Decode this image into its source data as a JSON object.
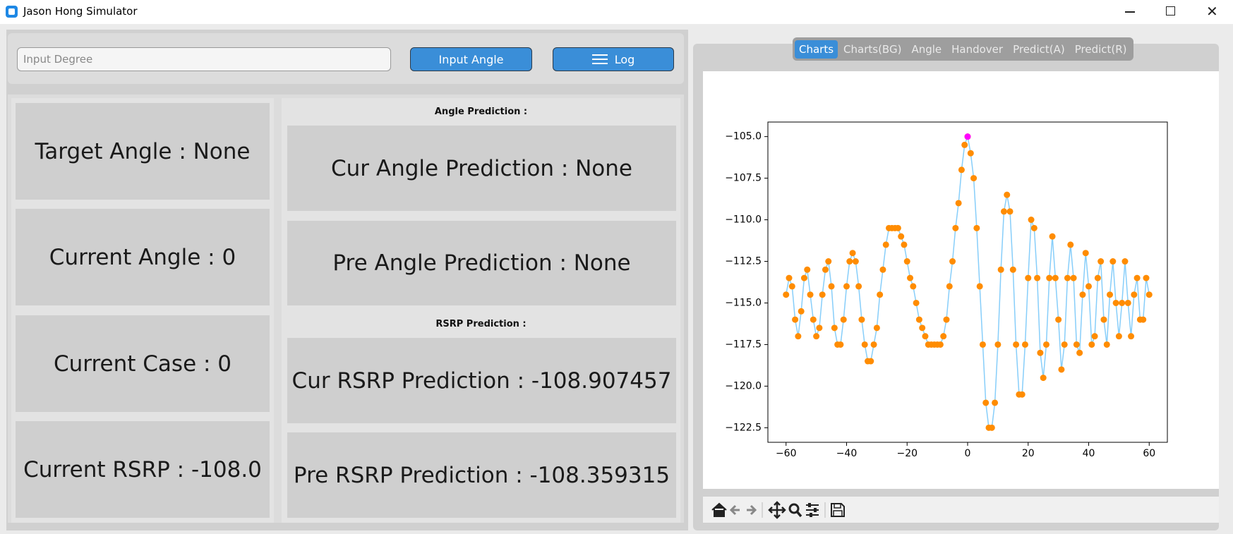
{
  "window": {
    "title": "Jason Hong Simulator"
  },
  "controls": {
    "input_placeholder": "Input Degree",
    "input_button": "Input Angle",
    "log_button": "Log"
  },
  "status": [
    "Target Angle : None",
    "Current Angle : 0",
    "Current Case : 0",
    "Current RSRP : -108.0"
  ],
  "angle_prediction": {
    "heading": "Angle Prediction :",
    "items": [
      "Cur Angle Prediction : None",
      "Pre Angle Prediction : None"
    ]
  },
  "rsrp_prediction": {
    "heading": "RSRP Prediction :",
    "items": [
      "Cur RSRP Prediction : -108.907457",
      "Pre RSRP Prediction : -108.359315"
    ]
  },
  "tabs": [
    "Charts",
    "Charts(BG)",
    "Angle",
    "Handover",
    "Predict(A)",
    "Predict(R)"
  ],
  "active_tab": 0,
  "chart_data": {
    "type": "line",
    "marker_color": "#ff8c00",
    "line_color": "#87cefa",
    "x": [
      -60,
      -59,
      -58,
      -57,
      -56,
      -55,
      -54,
      -53,
      -52,
      -51,
      -50,
      -49,
      -48,
      -47,
      -46,
      -45,
      -44,
      -43,
      -42,
      -41,
      -40,
      -39,
      -38,
      -37,
      -36,
      -35,
      -34,
      -33,
      -32,
      -31,
      -30,
      -29,
      -28,
      -27,
      -26,
      -25,
      -24,
      -23,
      -22,
      -21,
      -20,
      -19,
      -18,
      -17,
      -16,
      -15,
      -14,
      -13,
      -12,
      -11,
      -10,
      -9,
      -8,
      -7,
      -6,
      -5,
      -4,
      -3,
      -2,
      -1,
      0,
      1,
      2,
      3,
      4,
      5,
      6,
      7,
      8,
      9,
      10,
      11,
      12,
      13,
      14,
      15,
      16,
      17,
      18,
      19,
      20,
      21,
      22,
      23,
      24,
      25,
      26,
      27,
      28,
      29,
      30,
      31,
      32,
      33,
      34,
      35,
      36,
      37,
      38,
      39,
      40,
      41,
      42,
      43,
      44,
      45,
      46,
      47,
      48,
      49,
      50,
      51,
      52,
      53,
      54,
      55,
      56,
      57,
      58,
      59,
      60
    ],
    "values": [
      -114.5,
      -113.5,
      -114,
      -116,
      -117,
      -115.5,
      -113.5,
      -113,
      -114.5,
      -116,
      -117,
      -116.5,
      -114.5,
      -113,
      -112.5,
      -114,
      -116.5,
      -117.5,
      -117.5,
      -116,
      -114,
      -112.5,
      -112,
      -112.5,
      -114,
      -116,
      -117.5,
      -118.5,
      -118.5,
      -117.5,
      -116.5,
      -114.5,
      -113,
      -111.5,
      -110.5,
      -110.5,
      -110.5,
      -110.5,
      -111,
      -111.5,
      -112.5,
      -113.5,
      -114,
      -115,
      -116,
      -116.5,
      -117,
      -117.5,
      -117.5,
      -117.5,
      -117.5,
      -117.5,
      -117,
      -116,
      -114,
      -112.5,
      -110.5,
      -109,
      -107,
      -105.5,
      -105,
      -106,
      -107.5,
      -110.5,
      -114,
      -117.5,
      -121,
      -122.5,
      -122.5,
      -121,
      -117.5,
      -113,
      -109.5,
      -108.5,
      -109.5,
      -113,
      -117.5,
      -120.5,
      -120.5,
      -117.5,
      -113.5,
      -110,
      -110.5,
      -113.5,
      -118,
      -119.5,
      -117.5,
      -113.5,
      -111,
      -113.5,
      -116,
      -119,
      -117.5,
      -113.5,
      -111.5,
      -113.5,
      -117.5,
      -118,
      -114.5,
      -112,
      -114,
      -117.5,
      -117,
      -113.5,
      -112.5,
      -116,
      -117.5,
      -114.5,
      -112.5,
      -115,
      -117,
      -115,
      -112.5,
      -115,
      -117,
      -114.5,
      -113.5,
      -116,
      -116,
      -113.5,
      -114.5
    ],
    "highlight": {
      "x": 0,
      "y": -105,
      "color": "#ff00ff"
    },
    "xlim": [
      -66,
      66
    ],
    "ylim": [
      -123.375,
      -104.125
    ],
    "xticks": [
      {
        "value": -60,
        "label": "−60"
      },
      {
        "value": -40,
        "label": "−40"
      },
      {
        "value": -20,
        "label": "−20"
      },
      0,
      20,
      40,
      60
    ],
    "yticks": [
      {
        "value": -105,
        "label": "−105.0"
      },
      {
        "value": -107.5,
        "label": "−107.5"
      },
      {
        "value": -110,
        "label": "−110.0"
      },
      {
        "value": -112.5,
        "label": "−112.5"
      },
      {
        "value": -115,
        "label": "−115.0"
      },
      {
        "value": -117.5,
        "label": "−117.5"
      },
      {
        "value": -120,
        "label": "−120.0"
      },
      {
        "value": -122.5,
        "label": "−122.5"
      }
    ],
    "grid": false
  }
}
